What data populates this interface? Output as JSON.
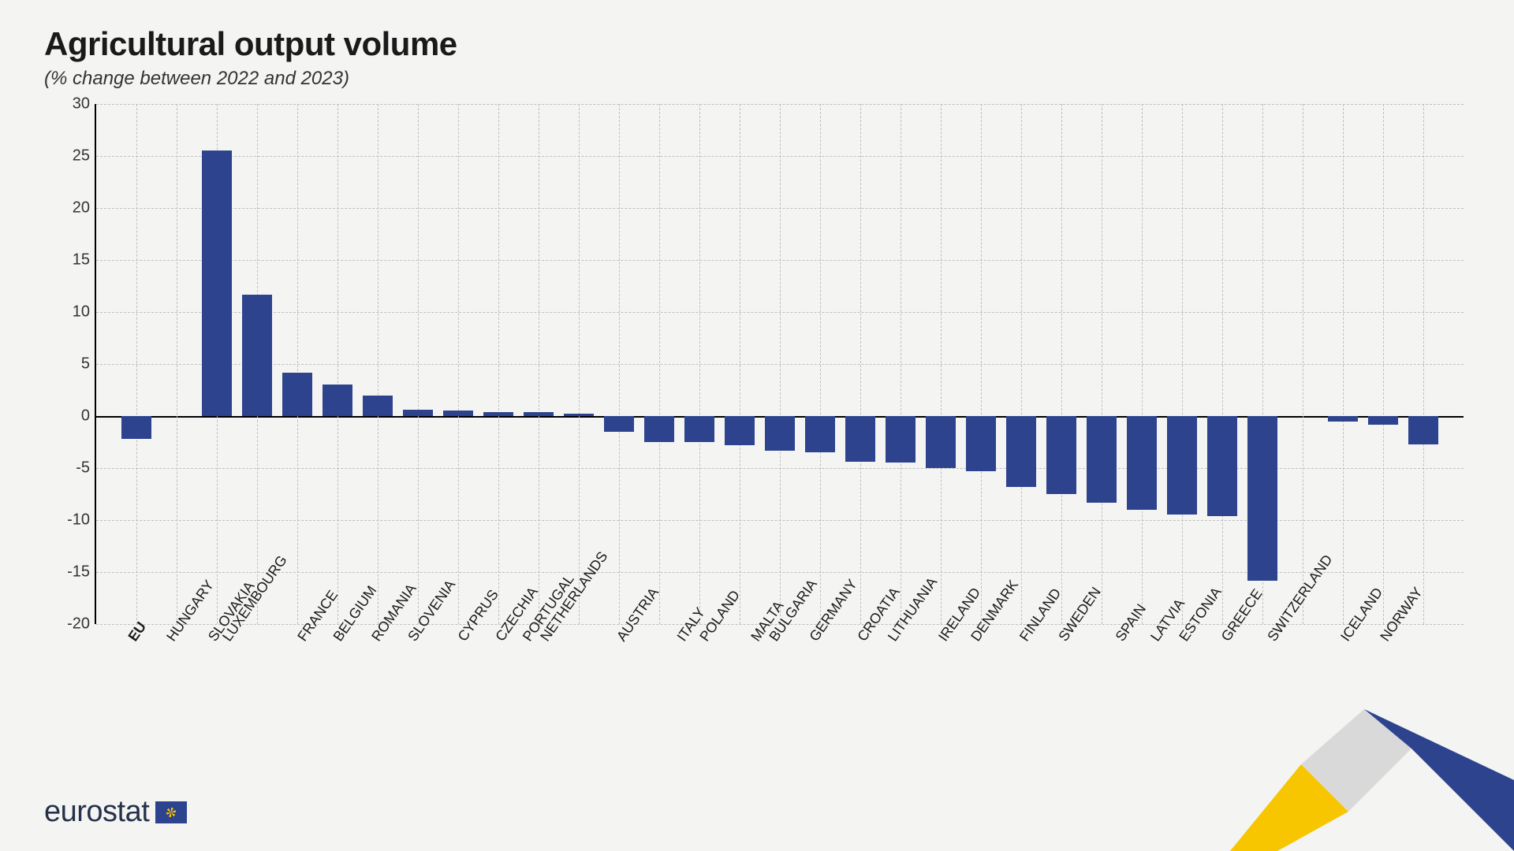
{
  "title": "Agricultural output volume",
  "subtitle": "(% change between 2022 and 2023)",
  "logo_text": "eurostat",
  "chart": {
    "type": "bar",
    "bar_color": "#2d438e",
    "background_color": "#f4f4f3",
    "grid_color": "#bfbfbf",
    "axis_color": "#000000",
    "ylim": [
      -20,
      30
    ],
    "ytick_step": 5,
    "yticks": [
      -20,
      -15,
      -10,
      -5,
      0,
      5,
      10,
      15,
      20,
      25,
      30
    ],
    "bar_width_ratio": 0.74,
    "title_fontsize": 42,
    "subtitle_fontsize": 24,
    "label_fontsize": 18,
    "tick_fontsize": 20,
    "groups": [
      {
        "items": [
          {
            "label": "EU",
            "value": -2.2,
            "bold": true
          }
        ]
      },
      {
        "items": [
          {
            "label": "HUNGARY",
            "value": 25.5
          },
          {
            "label": "SLOVAKIA",
            "value": 11.7
          },
          {
            "label": "LUXEMBOURG",
            "value": 4.2
          },
          {
            "label": "FRANCE",
            "value": 3.0
          },
          {
            "label": "BELGIUM",
            "value": 2.0
          },
          {
            "label": "ROMANIA",
            "value": 0.6
          },
          {
            "label": "SLOVENIA",
            "value": 0.5
          },
          {
            "label": "CYPRUS",
            "value": 0.4
          },
          {
            "label": "CZECHIA",
            "value": 0.4
          },
          {
            "label": "PORTUGAL",
            "value": 0.2
          },
          {
            "label": "NETHERLANDS",
            "value": -1.5
          },
          {
            "label": "AUSTRIA",
            "value": -2.5
          },
          {
            "label": "ITALY",
            "value": -2.5
          },
          {
            "label": "POLAND",
            "value": -2.8
          },
          {
            "label": "MALTA",
            "value": -3.3
          },
          {
            "label": "BULGARIA",
            "value": -3.5
          },
          {
            "label": "GERMANY",
            "value": -4.4
          },
          {
            "label": "CROATIA",
            "value": -4.5
          },
          {
            "label": "LITHUANIA",
            "value": -5.0
          },
          {
            "label": "IRELAND",
            "value": -5.3
          },
          {
            "label": "DENMARK",
            "value": -6.8
          },
          {
            "label": "FINLAND",
            "value": -7.5
          },
          {
            "label": "SWEDEN",
            "value": -8.3
          },
          {
            "label": "SPAIN",
            "value": -9.0
          },
          {
            "label": "LATVIA",
            "value": -9.5
          },
          {
            "label": "ESTONIA",
            "value": -9.6
          },
          {
            "label": "GREECE",
            "value": -15.8
          }
        ]
      },
      {
        "items": [
          {
            "label": "SWITZERLAND",
            "value": -0.5
          },
          {
            "label": "ICELAND",
            "value": -0.8
          },
          {
            "label": "NORWAY",
            "value": -2.7
          }
        ]
      }
    ],
    "group_gap_slots": 1,
    "swoosh_colors": {
      "yellow": "#f7c600",
      "grey": "#d9d9d9",
      "blue": "#2d438e"
    }
  }
}
